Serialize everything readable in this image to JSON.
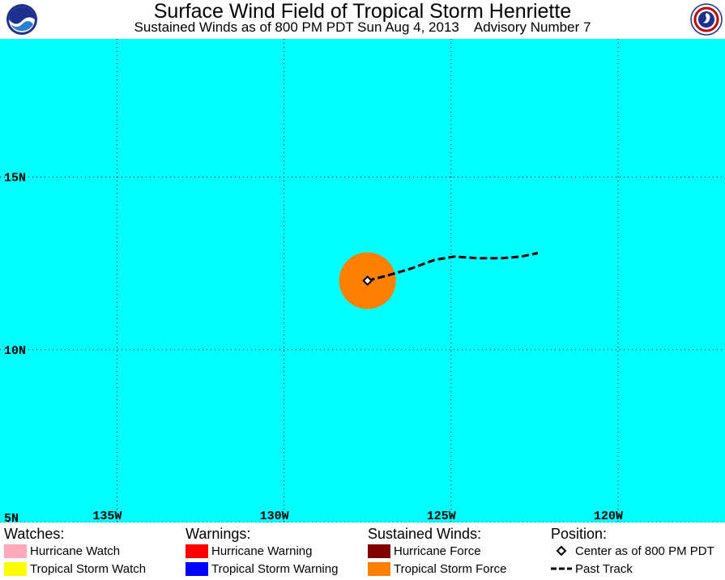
{
  "title": "Surface Wind Field of Tropical Storm Henriette",
  "subtitle_left": "Sustained Winds as of 800 PM PDT Sun Aug 4, 2013",
  "subtitle_right": "Advisory Number 7",
  "logos": {
    "left": "noaa-logo",
    "right": "nws-logo"
  },
  "colors": {
    "ocean": "#00ffff",
    "tropical_storm_force": "#ff8000",
    "hurricane_force": "#800000",
    "hurricane_watch": "#ffaabb",
    "hurricane_warning": "#ff0000",
    "tropical_storm_watch": "#ffff00",
    "tropical_storm_warning": "#0000ff"
  },
  "map": {
    "lat_labels": [
      "15N",
      "10N",
      "5N"
    ],
    "lon_labels": [
      "135W",
      "130W",
      "125W",
      "120W"
    ],
    "lat_range": [
      5,
      19
    ],
    "lon_range": [
      -138.5,
      -116.8
    ],
    "storm_center": {
      "lat": 12.0,
      "lon": -127.5
    },
    "tropical_storm_force_radius_deg": 0.85,
    "past_track": [
      {
        "lat": 12.0,
        "lon": -127.5
      },
      {
        "lat": 12.15,
        "lon": -126.9
      },
      {
        "lat": 12.35,
        "lon": -126.2
      },
      {
        "lat": 12.6,
        "lon": -125.5
      },
      {
        "lat": 12.7,
        "lon": -124.9
      },
      {
        "lat": 12.65,
        "lon": -124.2
      },
      {
        "lat": 12.65,
        "lon": -123.5
      },
      {
        "lat": 12.7,
        "lon": -122.9
      },
      {
        "lat": 12.8,
        "lon": -122.4
      }
    ]
  },
  "legend": {
    "watches": {
      "heading": "Watches:",
      "items": [
        {
          "label": "Hurricane Watch",
          "color": "#ffaabb"
        },
        {
          "label": "Tropical Storm Watch",
          "color": "#ffff00"
        }
      ]
    },
    "warnings": {
      "heading": "Warnings:",
      "items": [
        {
          "label": "Hurricane Warning",
          "color": "#ff0000"
        },
        {
          "label": "Tropical Storm Warning",
          "color": "#0000ff"
        }
      ]
    },
    "winds": {
      "heading": "Sustained Winds:",
      "items": [
        {
          "label": "Hurricane Force",
          "color": "#800000"
        },
        {
          "label": "Tropical Storm Force",
          "color": "#ff8000"
        }
      ]
    },
    "position": {
      "heading": "Position:",
      "items": [
        {
          "label": "Center as of 800 PM PDT",
          "icon": "diamond-icon"
        },
        {
          "label": "Past Track",
          "icon": "dashed-line-icon"
        }
      ]
    }
  }
}
